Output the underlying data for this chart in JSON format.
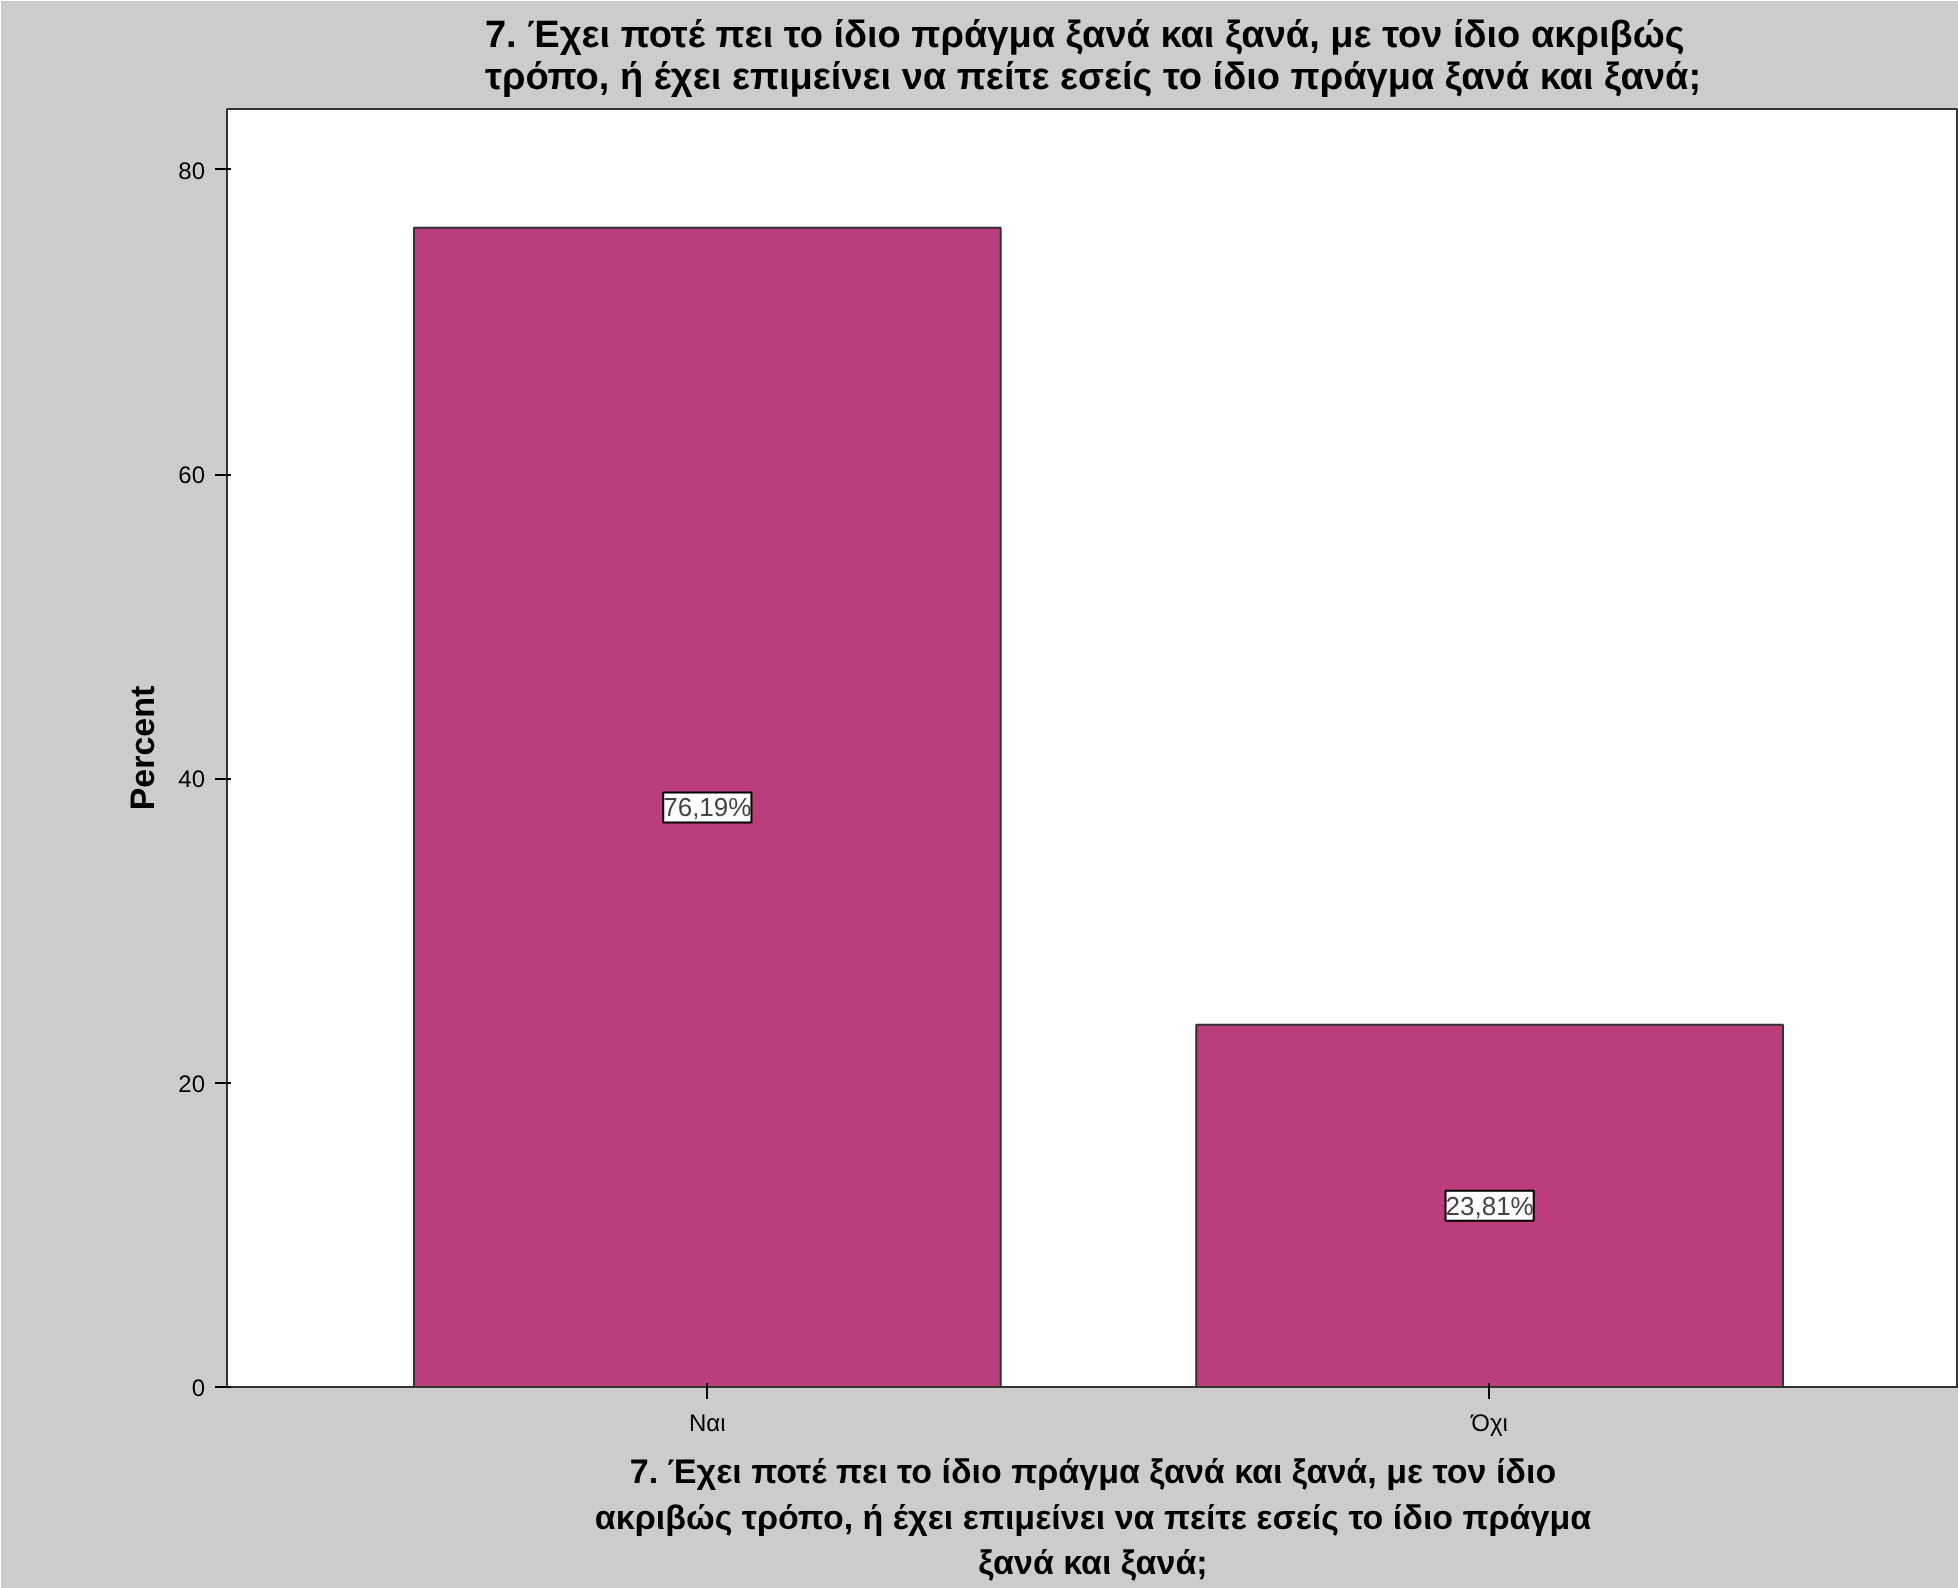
{
  "chart_data": {
    "type": "bar",
    "title": "7. Έχει ποτέ πει το ίδιο πράγμα ξανά και ξανά, με τον ίδιο ακριβώς\nτρόπο, ή έχει επιμείνει να πείτε εσείς το ίδιο πράγμα ξανά και ξανά;",
    "xlabel": "7. Έχει ποτέ πει το ίδιο πράγμα ξανά και ξανά, με τον ίδιο\nακριβώς τρόπο, ή έχει επιμείνει να πείτε εσείς το ίδιο πράγμα\nξανά και ξανά;",
    "ylabel": "Percent",
    "categories": [
      "Ναι",
      "Όχι"
    ],
    "values": [
      76.19,
      23.81
    ],
    "value_labels": [
      "76,19%",
      "23,81%"
    ],
    "color": "#bb3d7b",
    "ylim": [
      0,
      84
    ],
    "yticks": [
      0,
      20,
      40,
      60,
      80
    ],
    "grid": false
  }
}
